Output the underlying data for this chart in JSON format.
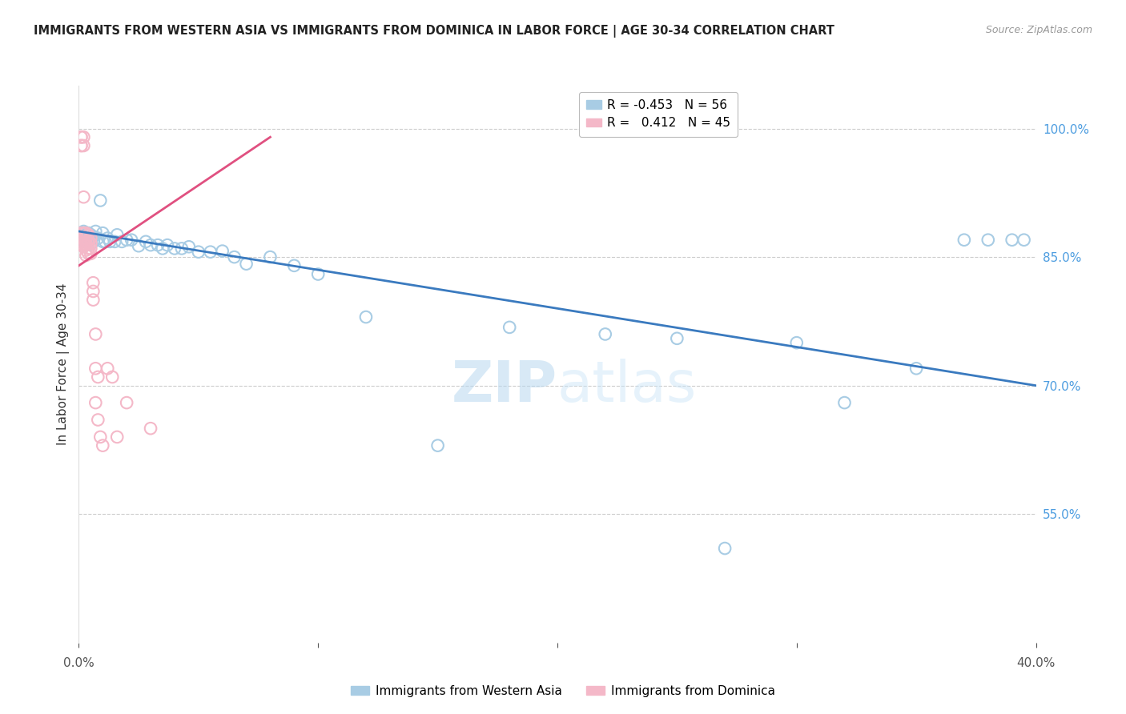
{
  "title": "IMMIGRANTS FROM WESTERN ASIA VS IMMIGRANTS FROM DOMINICA IN LABOR FORCE | AGE 30-34 CORRELATION CHART",
  "source": "Source: ZipAtlas.com",
  "ylabel": "In Labor Force | Age 30-34",
  "legend_blue_r": "-0.453",
  "legend_blue_n": "56",
  "legend_pink_r": "0.412",
  "legend_pink_n": "45",
  "legend_blue_label": "Immigrants from Western Asia",
  "legend_pink_label": "Immigrants from Dominica",
  "blue_color": "#a8cce4",
  "pink_color": "#f4b8c8",
  "blue_line_color": "#3a7abf",
  "pink_line_color": "#e05080",
  "background_color": "#ffffff",
  "grid_color": "#cccccc",
  "axis_label_color": "#4d9de0",
  "title_color": "#222222",
  "watermark": "ZIPatlas",
  "blue_x": [
    0.001,
    0.001,
    0.002,
    0.002,
    0.003,
    0.003,
    0.004,
    0.004,
    0.005,
    0.005,
    0.005,
    0.006,
    0.006,
    0.007,
    0.008,
    0.009,
    0.01,
    0.01,
    0.011,
    0.012,
    0.013,
    0.015,
    0.016,
    0.018,
    0.02,
    0.022,
    0.025,
    0.028,
    0.03,
    0.033,
    0.035,
    0.037,
    0.04,
    0.043,
    0.046,
    0.05,
    0.055,
    0.06,
    0.065,
    0.07,
    0.08,
    0.09,
    0.1,
    0.12,
    0.15,
    0.18,
    0.22,
    0.25,
    0.27,
    0.3,
    0.32,
    0.35,
    0.37,
    0.38,
    0.39,
    0.395
  ],
  "blue_y": [
    0.875,
    0.87,
    0.88,
    0.87,
    0.876,
    0.868,
    0.878,
    0.872,
    0.87,
    0.876,
    0.865,
    0.874,
    0.868,
    0.88,
    0.872,
    0.916,
    0.868,
    0.878,
    0.868,
    0.872,
    0.868,
    0.868,
    0.876,
    0.868,
    0.87,
    0.87,
    0.863,
    0.868,
    0.864,
    0.864,
    0.86,
    0.864,
    0.86,
    0.86,
    0.862,
    0.856,
    0.856,
    0.857,
    0.85,
    0.842,
    0.85,
    0.84,
    0.83,
    0.78,
    0.63,
    0.768,
    0.76,
    0.755,
    0.51,
    0.75,
    0.68,
    0.72,
    0.87,
    0.87,
    0.87,
    0.87
  ],
  "pink_x": [
    0.001,
    0.001,
    0.001,
    0.001,
    0.001,
    0.001,
    0.001,
    0.001,
    0.002,
    0.002,
    0.002,
    0.002,
    0.002,
    0.002,
    0.002,
    0.003,
    0.003,
    0.003,
    0.003,
    0.003,
    0.003,
    0.004,
    0.004,
    0.004,
    0.004,
    0.004,
    0.005,
    0.005,
    0.005,
    0.005,
    0.006,
    0.006,
    0.006,
    0.007,
    0.007,
    0.007,
    0.008,
    0.008,
    0.009,
    0.01,
    0.012,
    0.014,
    0.016,
    0.02,
    0.03
  ],
  "pink_y": [
    0.99,
    0.99,
    0.98,
    0.98,
    0.878,
    0.872,
    0.868,
    0.865,
    0.99,
    0.98,
    0.92,
    0.878,
    0.872,
    0.866,
    0.862,
    0.878,
    0.872,
    0.868,
    0.864,
    0.858,
    0.852,
    0.876,
    0.87,
    0.866,
    0.86,
    0.854,
    0.872,
    0.866,
    0.86,
    0.854,
    0.82,
    0.81,
    0.8,
    0.76,
    0.72,
    0.68,
    0.71,
    0.66,
    0.64,
    0.63,
    0.72,
    0.71,
    0.64,
    0.68,
    0.65
  ],
  "blue_line_x0": 0.0,
  "blue_line_y0": 0.88,
  "blue_line_x1": 0.4,
  "blue_line_y1": 0.7,
  "pink_line_x0": 0.0,
  "pink_line_y0": 0.84,
  "pink_line_x1": 0.08,
  "pink_line_y1": 0.99,
  "xlim": [
    0.0,
    0.4
  ],
  "ylim": [
    0.4,
    1.05
  ]
}
